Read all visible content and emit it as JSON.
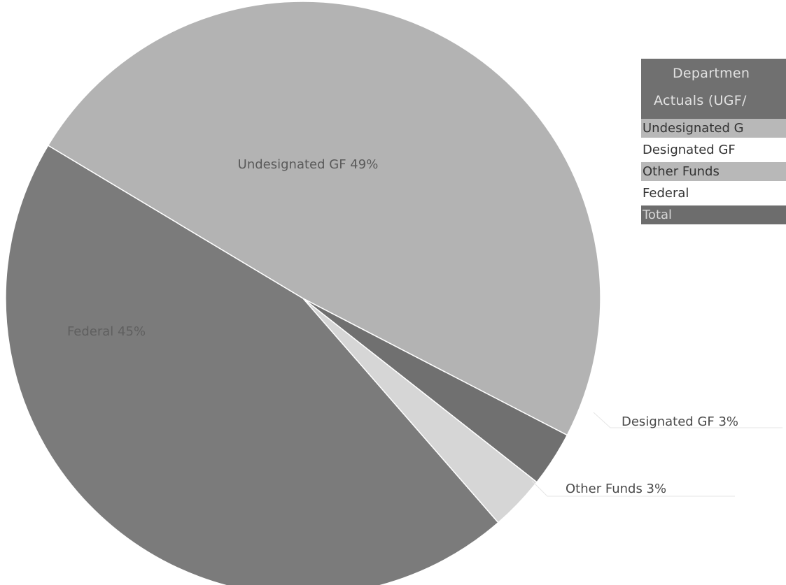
{
  "chart_data": {
    "type": "pie",
    "slices": [
      {
        "label": "Undesignated GF",
        "value": 49,
        "display": "Undesignated GF 49%",
        "color": "#b3b3b3"
      },
      {
        "label": "Designated GF",
        "value": 3,
        "display": "Designated GF 3%",
        "color": "#707070"
      },
      {
        "label": "Other Funds",
        "value": 3,
        "display": "Other Funds 3%",
        "color": "#d6d6d6"
      },
      {
        "label": "Federal",
        "value": 45,
        "display": "Federal 45%",
        "color": "#7b7b7b"
      }
    ]
  },
  "table": {
    "header_line1": "Departmen",
    "header_line2": "Actuals (UGF/",
    "rows": [
      "Undesignated G",
      "Designated GF",
      "Other Funds",
      "Federal",
      "Total"
    ]
  }
}
